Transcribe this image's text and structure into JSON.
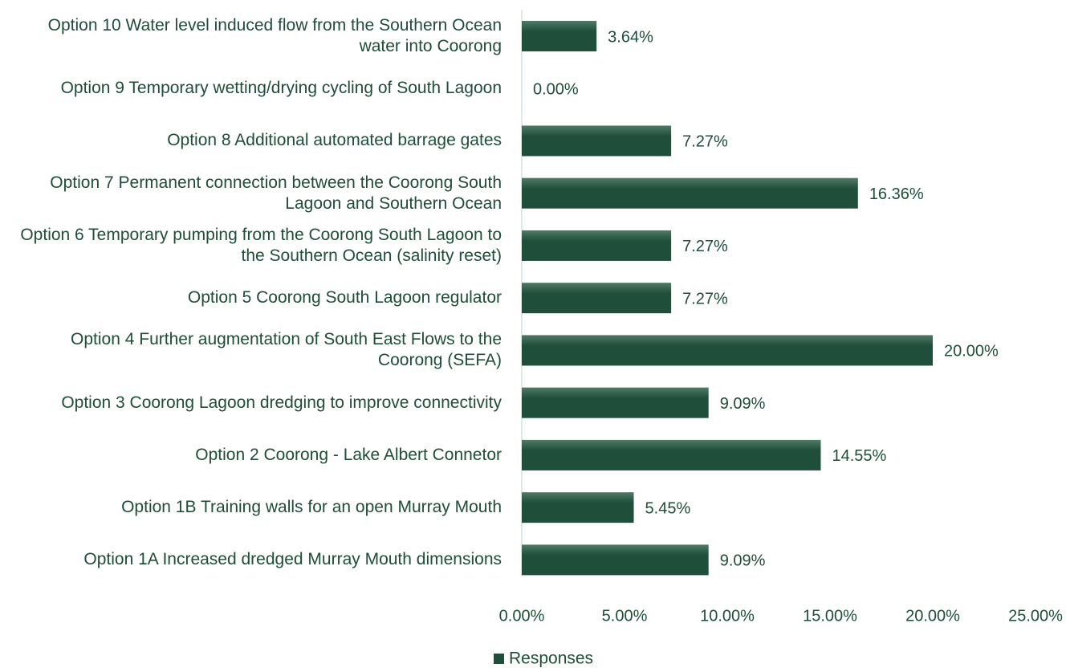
{
  "chart_data": {
    "type": "hbar",
    "categories": [
      "Option 10 Water level induced flow from the Southern Ocean water into Coorong",
      "Option 9 Temporary wetting/drying cycling of South Lagoon",
      "Option 8 Additional automated barrage gates",
      "Option 7 Permanent connection between the Coorong South Lagoon and Southern Ocean",
      "Option 6 Temporary pumping from the Coorong South Lagoon to the Southern Ocean (salinity reset)",
      "Option 5 Coorong South Lagoon regulator",
      "Option 4 Further augmentation of South East Flows to the Coorong (SEFA)",
      "Option 3 Coorong Lagoon dredging to improve connectivity",
      "Option 2 Coorong - Lake Albert Connetor",
      "Option 1B Training walls for an open Murray Mouth",
      "Option 1A Increased dredged Murray Mouth dimensions"
    ],
    "series": [
      {
        "name": "Responses",
        "color": "#1f4e3a",
        "values": [
          3.64,
          0,
          7.27,
          16.36,
          7.27,
          7.27,
          20,
          9.09,
          14.55,
          5.45,
          9.09
        ],
        "value_labels": [
          "3.64%",
          "0.00%",
          "7.27%",
          "16.36%",
          "7.27%",
          "7.27%",
          "20.00%",
          "9.09%",
          "14.55%",
          "5.45%",
          "9.09%"
        ]
      }
    ],
    "xlim": [
      0,
      25
    ],
    "xticks": [
      {
        "value": 0,
        "label": "0.00%"
      },
      {
        "value": 5,
        "label": "5.00%"
      },
      {
        "value": 10,
        "label": "10.00%"
      },
      {
        "value": 15,
        "label": "15.00%"
      },
      {
        "value": 20,
        "label": "20.00%"
      },
      {
        "value": 25,
        "label": "25.00%"
      }
    ],
    "legend": "bottom"
  }
}
